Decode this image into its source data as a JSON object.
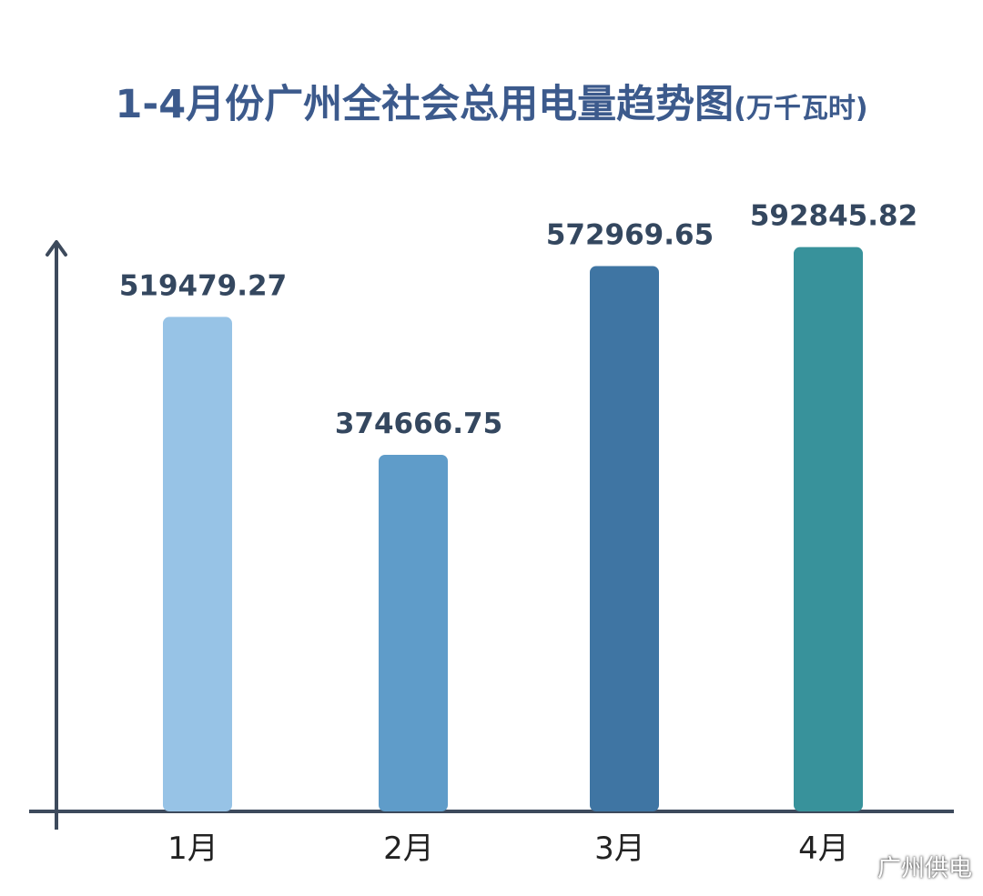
{
  "title": "1-4月份广州全社会总用电量趋势图",
  "unit": "(万千瓦时)",
  "watermark": "广州供电",
  "chart_data": {
    "type": "bar",
    "categories": [
      "1月",
      "2月",
      "3月",
      "4月"
    ],
    "values": [
      519479.27,
      374666.75,
      572969.65,
      592845.82
    ],
    "value_labels": [
      "519479.27",
      "374666.75",
      "572969.65",
      "592845.82"
    ],
    "bar_colors": [
      "#97c3e6",
      "#5f9cc9",
      "#3f75a3",
      "#38929b"
    ],
    "axis_color": "#3d4a5c",
    "ylim": [
      0,
      690000
    ],
    "grid": false,
    "legend": false
  }
}
